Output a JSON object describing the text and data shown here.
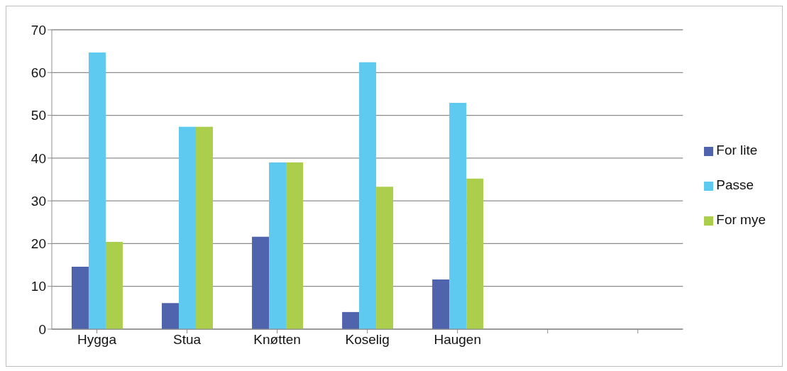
{
  "chart_data": {
    "type": "bar",
    "categories": [
      "Hygga",
      "Stua",
      "Knøtten",
      "Koselig",
      "Haugen",
      null,
      null
    ],
    "series": [
      {
        "name": "For lite",
        "color": "#5064ae",
        "values": [
          14.6,
          6.1,
          21.6,
          4.0,
          11.6,
          null,
          null
        ]
      },
      {
        "name": "Passe",
        "color": "#5ecaef",
        "values": [
          64.7,
          47.3,
          39.0,
          62.4,
          52.9,
          null,
          null
        ]
      },
      {
        "name": "For mye",
        "color": "#abcf4c",
        "values": [
          20.4,
          47.3,
          39.0,
          33.3,
          35.2,
          null,
          null
        ]
      }
    ],
    "ylim": [
      0,
      70
    ],
    "yticks": [
      0,
      10,
      20,
      30,
      40,
      50,
      60,
      70
    ],
    "grid": "y",
    "legend": "right"
  }
}
